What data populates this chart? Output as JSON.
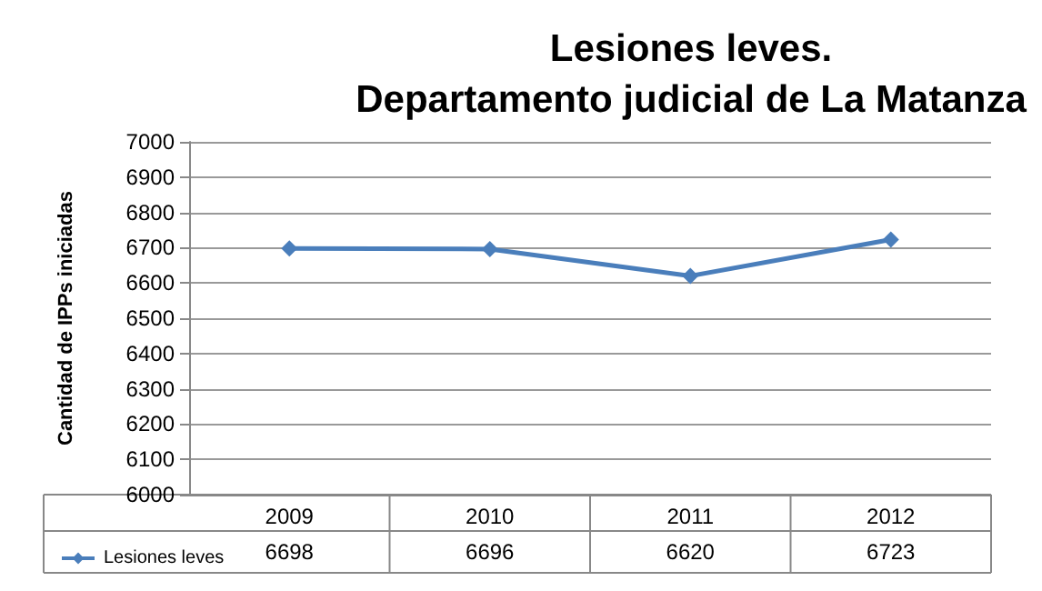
{
  "chart_data": {
    "type": "line",
    "title": "Lesiones leves.\nDepartamento judicial de La Matanza",
    "ylabel": "Cantidad de IPPs iniciadas",
    "categories": [
      "2009",
      "2010",
      "2011",
      "2012"
    ],
    "series": [
      {
        "name": "Lesiones leves",
        "color": "#4a7ebb",
        "values": [
          6698,
          6696,
          6620,
          6723
        ]
      }
    ],
    "ylim": [
      6000,
      7000
    ],
    "yticks": [
      6000,
      6100,
      6200,
      6300,
      6400,
      6500,
      6600,
      6700,
      6800,
      6900,
      7000
    ],
    "grid": "y",
    "legend": "bottom left",
    "marker": "diamond",
    "line_style": "solid",
    "data_labels": true
  }
}
